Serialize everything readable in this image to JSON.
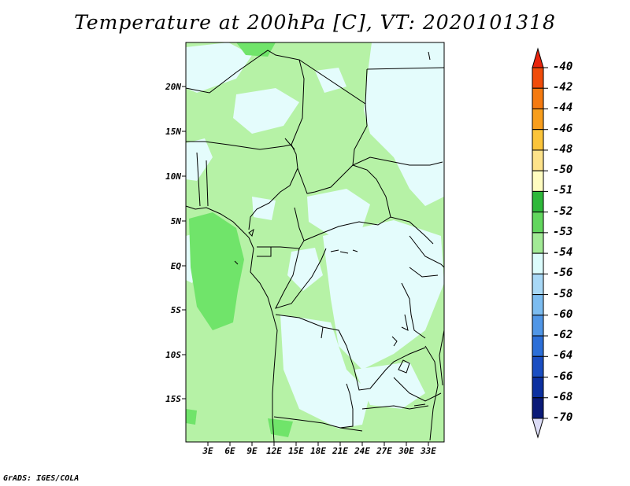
{
  "title": "Temperature at 200hPa [C], VT: 2020101318",
  "credit": "GrADS: IGES/COLA",
  "lat_labels": [
    "20N",
    "15N",
    "10N",
    "5N",
    "EQ",
    "5S",
    "10S",
    "15S"
  ],
  "lon_labels": [
    "3E",
    "6E",
    "9E",
    "12E",
    "15E",
    "18E",
    "21E",
    "24E",
    "27E",
    "30E",
    "33E"
  ],
  "colorbar": {
    "labels": [
      "-40",
      "-42",
      "-44",
      "-46",
      "-48",
      "-50",
      "-51",
      "-52",
      "-53",
      "-54",
      "-56",
      "-58",
      "-60",
      "-62",
      "-64",
      "-66",
      "-68",
      "-70"
    ],
    "colors": [
      "#e8240c",
      "#f04c0a",
      "#f57a10",
      "#f89e1c",
      "#fbc43a",
      "#fde28a",
      "#fffcc0",
      "#2eb83a",
      "#62d65e",
      "#a2ea96",
      "#dcfcfc",
      "#a8d8f6",
      "#7cbcf0",
      "#5096e6",
      "#2c6fd8",
      "#1a4ec2",
      "#0c30a0",
      "#0a1a78",
      "#dcdcf6"
    ]
  },
  "map_colors": {
    "base": "#b6f2a6",
    "cold": "#e4fcfc",
    "warm": "#70e46a"
  }
}
